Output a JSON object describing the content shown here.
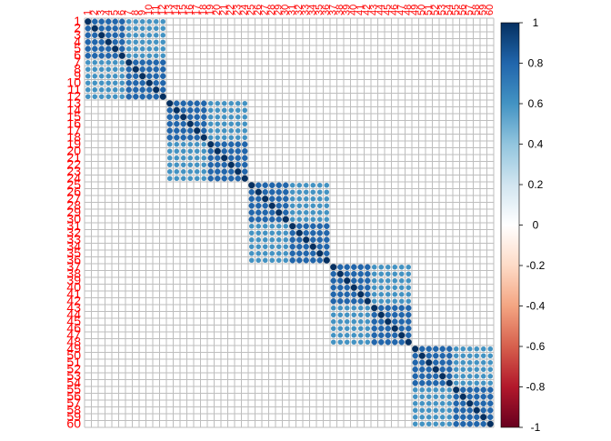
{
  "chart_data": {
    "type": "heatmap",
    "subtype": "correlation-matrix-circles",
    "title": "",
    "xlabel": "",
    "ylabel": "",
    "n_variables": 60,
    "labels": [
      "1",
      "2",
      "3",
      "4",
      "5",
      "6",
      "7",
      "8",
      "9",
      "10",
      "11",
      "12",
      "13",
      "14",
      "15",
      "16",
      "17",
      "18",
      "19",
      "20",
      "21",
      "22",
      "23",
      "24",
      "25",
      "26",
      "27",
      "28",
      "29",
      "30",
      "31",
      "32",
      "33",
      "34",
      "35",
      "36",
      "37",
      "38",
      "39",
      "40",
      "41",
      "42",
      "43",
      "44",
      "45",
      "46",
      "47",
      "48",
      "49",
      "50",
      "51",
      "52",
      "53",
      "54",
      "55",
      "56",
      "57",
      "58",
      "59",
      "60"
    ],
    "row_labels_shown": [
      "1",
      "2",
      "3",
      "4",
      "5",
      "6",
      "7",
      "8",
      "9",
      "10",
      "11",
      "12",
      "13",
      "14",
      "15",
      "16",
      "17",
      "18",
      "19",
      "20",
      "21",
      "22",
      "23",
      "24",
      "25",
      "26",
      "27",
      "28",
      "29",
      "30",
      "31",
      "32",
      "33",
      "34",
      "35",
      "36",
      "37",
      "38",
      "39",
      "40",
      "41",
      "42",
      "43",
      "44",
      "45",
      "46",
      "47",
      "48",
      "49",
      "50",
      "51",
      "52",
      "53",
      "54",
      "55",
      "56",
      "57",
      "58",
      "59",
      "60"
    ],
    "label_color": "#ff0000",
    "grid": true,
    "grid_color": "#bebebe",
    "correlation_structure": {
      "blocks": [
        {
          "start": 1,
          "end": 12
        },
        {
          "start": 13,
          "end": 24
        },
        {
          "start": 25,
          "end": 36
        },
        {
          "start": 37,
          "end": 48
        },
        {
          "start": 49,
          "end": 60
        }
      ],
      "diagonal": 1.0,
      "within_block_near": 0.8,
      "within_block_far": 0.6,
      "between_blocks": 0.0
    },
    "colorbar": {
      "ticks": [
        "1",
        "0.8",
        "0.6",
        "0.4",
        "0.2",
        "0",
        "-0.2",
        "-0.4",
        "-0.6",
        "-0.8",
        "-1"
      ],
      "tick_values": [
        1,
        0.8,
        0.6,
        0.4,
        0.2,
        0,
        -0.2,
        -0.4,
        -0.6,
        -0.8,
        -1
      ],
      "range": [
        -1,
        1
      ],
      "placement": "right",
      "colors": [
        "#67001f",
        "#b2182b",
        "#d6604d",
        "#f4a582",
        "#fddbc7",
        "#ffffff",
        "#d1e5f0",
        "#92c5de",
        "#4393c3",
        "#2166ac",
        "#053061"
      ]
    }
  }
}
